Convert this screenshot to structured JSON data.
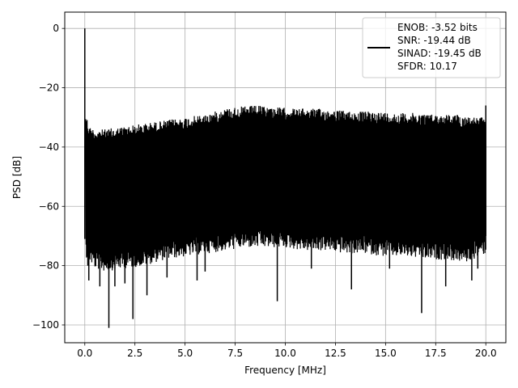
{
  "chart_data": {
    "type": "line",
    "title": "",
    "xlabel": "Frequency [MHz]",
    "ylabel": "PSD [dB]",
    "xlim": [
      -1.0,
      21.0
    ],
    "ylim": [
      -106.0,
      5.5
    ],
    "xticks": [
      0.0,
      2.5,
      5.0,
      7.5,
      10.0,
      12.5,
      15.0,
      17.5,
      20.0
    ],
    "xtick_labels": [
      "0.0",
      "2.5",
      "5.0",
      "7.5",
      "10.0",
      "12.5",
      "15.0",
      "17.5",
      "20.0"
    ],
    "yticks": [
      0,
      -20,
      -40,
      -60,
      -80,
      -100
    ],
    "ytick_labels": [
      "0",
      "−20",
      "−40",
      "−60",
      "−80",
      "−100"
    ],
    "grid": true,
    "legend_position": "top-right",
    "legend_lines": [
      "ENOB: -3.52 bits",
      "SNR: -19.44 dB",
      "SINAD: -19.45 dB",
      "SFDR: 10.17"
    ],
    "series": [
      {
        "color": "#000000",
        "upper_envelope": {
          "x": [
            0.05,
            0.2,
            0.5,
            1.0,
            2.0,
            3.0,
            4.0,
            5.0,
            6.0,
            7.0,
            7.5,
            8.5,
            9.5,
            10.5,
            11.5,
            12.5,
            13.5,
            14.5,
            15.5,
            16.5,
            17.5,
            18.5,
            19.5,
            20.0
          ],
          "y": [
            -28,
            -33,
            -34,
            -34,
            -33,
            -32,
            -31,
            -30,
            -29,
            -27,
            -26.5,
            -26,
            -26.5,
            -27,
            -27,
            -27.5,
            -28,
            -28,
            -28.5,
            -28.5,
            -29,
            -29,
            -30,
            -30
          ]
        },
        "lower_envelope": {
          "x": [
            0.05,
            0.5,
            1.0,
            2.0,
            3.0,
            4.0,
            5.0,
            6.0,
            7.0,
            8.0,
            9.0,
            10.0,
            11.0,
            12.0,
            13.0,
            14.0,
            15.0,
            16.0,
            17.0,
            18.0,
            19.0,
            20.0
          ],
          "y": [
            -71,
            -75,
            -76,
            -75,
            -74,
            -72,
            -71,
            -70,
            -69,
            -68,
            -68,
            -68,
            -69,
            -69,
            -70,
            -70,
            -71,
            -71,
            -72,
            -72,
            -73,
            -70
          ]
        },
        "peaks": [
          {
            "x": 0.0,
            "y": 0.0
          },
          {
            "x": 20.0,
            "y": -26.0
          }
        ],
        "deep_nulls": [
          {
            "x": 0.15,
            "y": -80
          },
          {
            "x": 0.2,
            "y": -85
          },
          {
            "x": 0.75,
            "y": -87
          },
          {
            "x": 1.2,
            "y": -101
          },
          {
            "x": 1.5,
            "y": -87
          },
          {
            "x": 2.0,
            "y": -86
          },
          {
            "x": 2.4,
            "y": -98
          },
          {
            "x": 3.1,
            "y": -90
          },
          {
            "x": 4.1,
            "y": -84
          },
          {
            "x": 5.6,
            "y": -85
          },
          {
            "x": 6.0,
            "y": -82
          },
          {
            "x": 9.6,
            "y": -92
          },
          {
            "x": 11.3,
            "y": -81
          },
          {
            "x": 13.3,
            "y": -88
          },
          {
            "x": 15.2,
            "y": -81
          },
          {
            "x": 16.8,
            "y": -96
          },
          {
            "x": 18.0,
            "y": -87
          },
          {
            "x": 19.3,
            "y": -85
          },
          {
            "x": 19.6,
            "y": -81
          }
        ]
      }
    ]
  }
}
